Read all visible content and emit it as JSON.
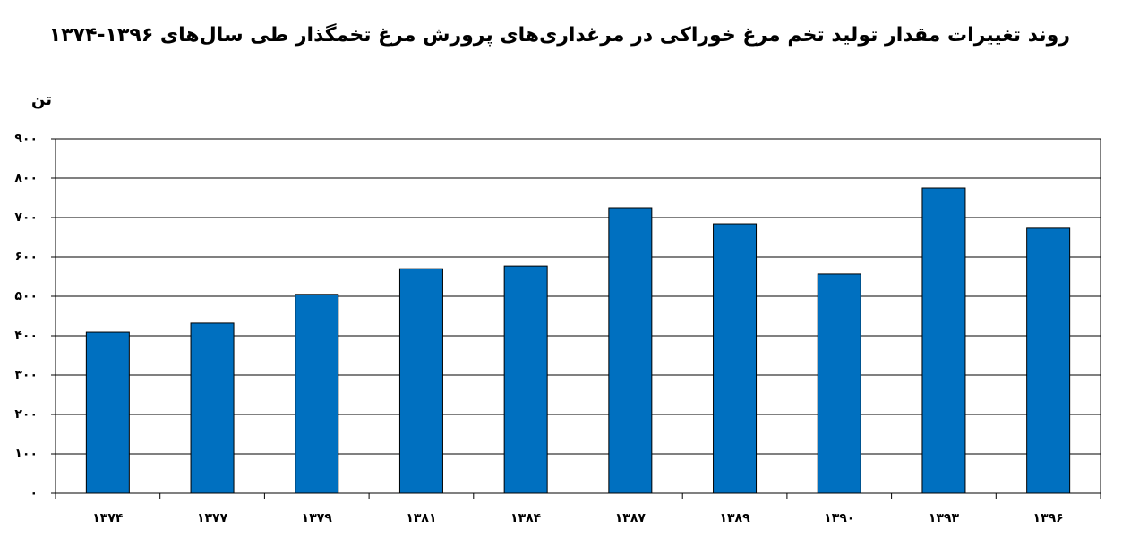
{
  "chart_data": {
    "type": "bar",
    "title": "روند تغییرات مقدار تولید تخم مرغ خوراکی در مرغداری‌های پرورش مرغ تخمگذار طی سال‌های ۱۳۹۶-۱۳۷۴",
    "y_label": "تن",
    "categories": [
      "۱۳۷۴",
      "۱۳۷۷",
      "۱۳۷۹",
      "۱۳۸۱",
      "۱۳۸۴",
      "۱۳۸۷",
      "۱۳۸۹",
      "۱۳۹۰",
      "۱۳۹۳",
      "۱۳۹۶"
    ],
    "values": [
      409,
      432,
      505,
      570,
      577,
      725,
      684,
      557,
      775,
      673
    ],
    "color": "#0070c0",
    "ylim": [
      0,
      900
    ],
    "yticks": [
      {
        "value": 0,
        "label": "۰"
      },
      {
        "value": 100,
        "label": "۱۰۰"
      },
      {
        "value": 200,
        "label": "۲۰۰"
      },
      {
        "value": 300,
        "label": "۳۰۰"
      },
      {
        "value": 400,
        "label": "۴۰۰"
      },
      {
        "value": 500,
        "label": "۵۰۰"
      },
      {
        "value": 600,
        "label": "۶۰۰"
      },
      {
        "value": 700,
        "label": "۷۰۰"
      },
      {
        "value": 800,
        "label": "۸۰۰"
      },
      {
        "value": 900,
        "label": "۹۰۰"
      }
    ],
    "grid": true
  }
}
